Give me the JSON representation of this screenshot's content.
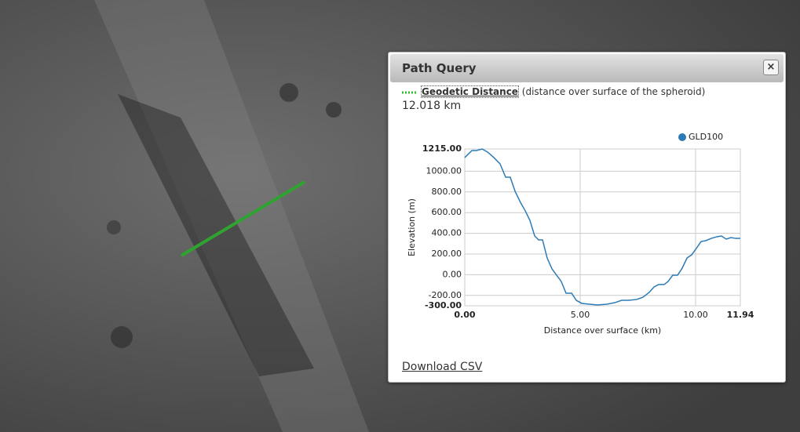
{
  "panel": {
    "title": "Path Query",
    "measure_name": "Geodetic Distance",
    "measure_note": "(distance over surface of the spheroid)",
    "distance": "12.018 km",
    "link": "Download CSV"
  },
  "chart_data": {
    "type": "line",
    "x_label": "Distance over surface (km)",
    "y_label": "Elevation (m)",
    "x": [
      0.0,
      0.31,
      0.51,
      0.75,
      0.99,
      1.26,
      1.53,
      1.77,
      1.97,
      2.18,
      2.41,
      2.62,
      2.82,
      3.03,
      3.2,
      3.37,
      3.57,
      3.78,
      3.98,
      4.18,
      4.39,
      4.63,
      4.83,
      5.07,
      5.41,
      5.75,
      6.16,
      6.5,
      6.8,
      7.11,
      7.45,
      7.72,
      7.99,
      8.2,
      8.4,
      8.64,
      8.81,
      9.01,
      9.22,
      9.42,
      9.63,
      9.83,
      10.03,
      10.24,
      10.44,
      10.68,
      10.92,
      11.12,
      11.33,
      11.53,
      11.74,
      11.94
    ],
    "series": [
      {
        "name": "GLD100",
        "color": "#2c7bb6",
        "values": [
          1132,
          1200,
          1200,
          1215,
          1185,
          1132,
          1071,
          942,
          942,
          806,
          700,
          617,
          526,
          374,
          336,
          336,
          162,
          56,
          -5,
          -65,
          -179,
          -179,
          -247,
          -277,
          -285,
          -292,
          -285,
          -270,
          -247,
          -247,
          -239,
          -217,
          -171,
          -118,
          -95,
          -95,
          -65,
          -5,
          -5,
          63,
          162,
          192,
          253,
          321,
          329,
          351,
          367,
          374,
          344,
          359,
          351,
          351
        ]
      }
    ],
    "xlim": [
      0,
      11.94
    ],
    "xticks": [
      {
        "value": 0,
        "label": "0.00"
      },
      {
        "value": 5,
        "label": "5.00"
      },
      {
        "value": 10,
        "label": "10.00"
      },
      {
        "value": 11.94,
        "label": "11.94"
      }
    ],
    "ylim": [
      -300,
      1215
    ],
    "yticks": [
      {
        "value": -300,
        "label": "-300.00"
      },
      {
        "value": -200,
        "label": "-200.00"
      },
      {
        "value": 0,
        "label": "0.00"
      },
      {
        "value": 200,
        "label": "200.00"
      },
      {
        "value": 400,
        "label": "400.00"
      },
      {
        "value": 600,
        "label": "600.00"
      },
      {
        "value": 800,
        "label": "800.00"
      },
      {
        "value": 1000,
        "label": "1000.00"
      },
      {
        "value": 1215,
        "label": "1215.00"
      }
    ],
    "grid": true,
    "legend": "top-right"
  }
}
